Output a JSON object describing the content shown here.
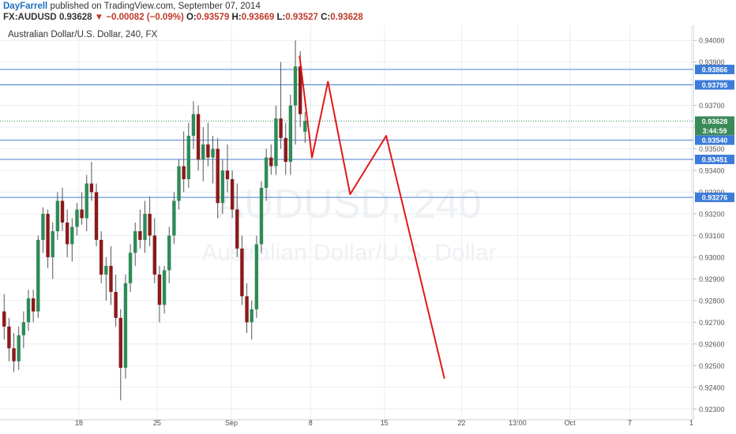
{
  "header": {
    "author": "DayFarrell",
    "published_text": " published on TradingView.com, September 07, 2014",
    "symbol": "FX:AUDUSD",
    "last": "0.93628",
    "change": "−0.00082 (−0.09%)",
    "o_label": "O:",
    "o": "0.93579",
    "h_label": "H:",
    "h": "0.93669",
    "l_label": "L:",
    "l": "0.93527",
    "c_label": "C:",
    "c": "0.93628"
  },
  "chart_title": "Australian Dollar/U.S. Dollar, 240, FX",
  "watermark": {
    "line1": "AUDUSD, 240",
    "line2": "Australian Dollar/U.S. Dollar"
  },
  "colors": {
    "up_candle": "#2e8b57",
    "down_candle": "#8b1a1a",
    "level_line": "#4a7fcf",
    "level_label_bg": "#3d7bd8",
    "last_price_bg": "#3a8a57",
    "projection": "#e21818",
    "grid": "#e8edf2"
  },
  "chart_data": {
    "type": "candlestick",
    "title": "Australian Dollar/U.S. Dollar, 240, FX",
    "y_range": [
      0.9225,
      0.9407
    ],
    "y_ticks": [
      0.923,
      0.924,
      0.925,
      0.926,
      0.927,
      0.928,
      0.929,
      0.93,
      0.931,
      0.932,
      0.933,
      0.934,
      0.935,
      0.936,
      0.937,
      0.938,
      0.939,
      0.94
    ],
    "y_tick_labels": [
      "0.92300",
      "0.92400",
      "0.92500",
      "0.92600",
      "0.92700",
      "0.92800",
      "0.92900",
      "0.93000",
      "0.93100",
      "0.93200",
      "0.93300",
      "0.93400",
      "0.93500",
      "0.93600",
      "0.93700",
      "0.93800",
      "0.93900",
      "0.94000"
    ],
    "x_range": [
      0,
      100
    ],
    "x_ticks": [
      {
        "label": "18",
        "x": 11.39
      },
      {
        "label": "25",
        "x": 22.65
      },
      {
        "label": "Sep",
        "x": 33.37
      },
      {
        "label": "8",
        "x": 44.79
      },
      {
        "label": "15",
        "x": 55.44
      },
      {
        "label": "22",
        "x": 66.56
      },
      {
        "label": "13:00",
        "x": 74.65
      },
      {
        "label": "Oct",
        "x": 82.19
      },
      {
        "label": "7",
        "x": 90.83
      },
      {
        "label": "1",
        "x": 99.72
      }
    ],
    "levels": [
      {
        "value": 0.93866,
        "label": "0.93866"
      },
      {
        "value": 0.93795,
        "label": "0.93795"
      },
      {
        "value": 0.9354,
        "label": "0.93540"
      },
      {
        "value": 0.93451,
        "label": "0.93451"
      },
      {
        "value": 0.93276,
        "label": "0.93276"
      }
    ],
    "last_price": {
      "value": 0.93628,
      "label": "0.93628",
      "countdown": "3:44:59"
    },
    "projection_path": [
      {
        "x": 43.2,
        "y": 0.9393
      },
      {
        "x": 45.0,
        "y": 0.9346
      },
      {
        "x": 47.3,
        "y": 0.9381
      },
      {
        "x": 50.5,
        "y": 0.9329
      },
      {
        "x": 55.7,
        "y": 0.9356
      },
      {
        "x": 64.1,
        "y": 0.9244
      }
    ],
    "candles": [
      {
        "x": 0.6,
        "o": 0.9275,
        "h": 0.9283,
        "l": 0.9262,
        "c": 0.9268
      },
      {
        "x": 1.3,
        "o": 0.9268,
        "h": 0.9272,
        "l": 0.9252,
        "c": 0.9258
      },
      {
        "x": 2.0,
        "o": 0.9258,
        "h": 0.9265,
        "l": 0.9247,
        "c": 0.9252
      },
      {
        "x": 2.7,
        "o": 0.9252,
        "h": 0.9268,
        "l": 0.9248,
        "c": 0.9264
      },
      {
        "x": 3.4,
        "o": 0.9264,
        "h": 0.9275,
        "l": 0.9258,
        "c": 0.927
      },
      {
        "x": 4.1,
        "o": 0.927,
        "h": 0.9285,
        "l": 0.9266,
        "c": 0.9281
      },
      {
        "x": 4.8,
        "o": 0.9281,
        "h": 0.9285,
        "l": 0.927,
        "c": 0.9275
      },
      {
        "x": 5.5,
        "o": 0.9275,
        "h": 0.931,
        "l": 0.9272,
        "c": 0.9308
      },
      {
        "x": 6.2,
        "o": 0.9308,
        "h": 0.9323,
        "l": 0.9302,
        "c": 0.932
      },
      {
        "x": 6.9,
        "o": 0.932,
        "h": 0.9322,
        "l": 0.9295,
        "c": 0.93
      },
      {
        "x": 7.6,
        "o": 0.93,
        "h": 0.9316,
        "l": 0.929,
        "c": 0.9312
      },
      {
        "x": 8.3,
        "o": 0.9312,
        "h": 0.933,
        "l": 0.9308,
        "c": 0.9326
      },
      {
        "x": 9.0,
        "o": 0.9326,
        "h": 0.9332,
        "l": 0.9312,
        "c": 0.9316
      },
      {
        "x": 9.7,
        "o": 0.9316,
        "h": 0.9322,
        "l": 0.93,
        "c": 0.9306
      },
      {
        "x": 10.4,
        "o": 0.9306,
        "h": 0.9318,
        "l": 0.9298,
        "c": 0.9314
      },
      {
        "x": 11.1,
        "o": 0.9314,
        "h": 0.9325,
        "l": 0.931,
        "c": 0.9322
      },
      {
        "x": 11.8,
        "o": 0.9322,
        "h": 0.933,
        "l": 0.9315,
        "c": 0.9318
      },
      {
        "x": 12.5,
        "o": 0.9318,
        "h": 0.9338,
        "l": 0.9312,
        "c": 0.9334
      },
      {
        "x": 13.2,
        "o": 0.9334,
        "h": 0.9344,
        "l": 0.9326,
        "c": 0.933
      },
      {
        "x": 13.9,
        "o": 0.933,
        "h": 0.9334,
        "l": 0.9305,
        "c": 0.9308
      },
      {
        "x": 14.6,
        "o": 0.9308,
        "h": 0.9312,
        "l": 0.9288,
        "c": 0.9292
      },
      {
        "x": 15.3,
        "o": 0.9292,
        "h": 0.93,
        "l": 0.928,
        "c": 0.9296
      },
      {
        "x": 16.0,
        "o": 0.9296,
        "h": 0.9305,
        "l": 0.9278,
        "c": 0.9284
      },
      {
        "x": 16.7,
        "o": 0.9284,
        "h": 0.9292,
        "l": 0.9268,
        "c": 0.9272
      },
      {
        "x": 17.4,
        "o": 0.9272,
        "h": 0.9276,
        "l": 0.9234,
        "c": 0.9249
      },
      {
        "x": 18.1,
        "o": 0.9249,
        "h": 0.9292,
        "l": 0.9244,
        "c": 0.9288
      },
      {
        "x": 18.8,
        "o": 0.9288,
        "h": 0.9306,
        "l": 0.9284,
        "c": 0.9302
      },
      {
        "x": 19.5,
        "o": 0.9302,
        "h": 0.9316,
        "l": 0.9296,
        "c": 0.9312
      },
      {
        "x": 20.2,
        "o": 0.9312,
        "h": 0.9322,
        "l": 0.9304,
        "c": 0.9308
      },
      {
        "x": 20.9,
        "o": 0.9308,
        "h": 0.9326,
        "l": 0.9302,
        "c": 0.932
      },
      {
        "x": 21.6,
        "o": 0.932,
        "h": 0.9328,
        "l": 0.9305,
        "c": 0.931
      },
      {
        "x": 22.3,
        "o": 0.931,
        "h": 0.9318,
        "l": 0.9288,
        "c": 0.9292
      },
      {
        "x": 23.0,
        "o": 0.9292,
        "h": 0.9296,
        "l": 0.927,
        "c": 0.9278
      },
      {
        "x": 23.7,
        "o": 0.9278,
        "h": 0.9296,
        "l": 0.9274,
        "c": 0.9294
      },
      {
        "x": 24.4,
        "o": 0.9294,
        "h": 0.9314,
        "l": 0.9288,
        "c": 0.931
      },
      {
        "x": 25.1,
        "o": 0.931,
        "h": 0.933,
        "l": 0.9306,
        "c": 0.9326
      },
      {
        "x": 25.8,
        "o": 0.9326,
        "h": 0.9345,
        "l": 0.9322,
        "c": 0.9342
      },
      {
        "x": 26.5,
        "o": 0.9342,
        "h": 0.9358,
        "l": 0.933,
        "c": 0.9336
      },
      {
        "x": 27.2,
        "o": 0.9336,
        "h": 0.9362,
        "l": 0.9332,
        "c": 0.9356
      },
      {
        "x": 27.9,
        "o": 0.9356,
        "h": 0.9372,
        "l": 0.935,
        "c": 0.9366
      },
      {
        "x": 28.6,
        "o": 0.9366,
        "h": 0.937,
        "l": 0.934,
        "c": 0.9345
      },
      {
        "x": 29.3,
        "o": 0.9345,
        "h": 0.936,
        "l": 0.9335,
        "c": 0.9352
      },
      {
        "x": 30.0,
        "o": 0.9352,
        "h": 0.9362,
        "l": 0.9342,
        "c": 0.9346
      },
      {
        "x": 30.7,
        "o": 0.9346,
        "h": 0.9356,
        "l": 0.9334,
        "c": 0.935
      },
      {
        "x": 31.4,
        "o": 0.935,
        "h": 0.9355,
        "l": 0.9318,
        "c": 0.9325
      },
      {
        "x": 32.1,
        "o": 0.9325,
        "h": 0.9345,
        "l": 0.932,
        "c": 0.934
      },
      {
        "x": 32.8,
        "o": 0.934,
        "h": 0.9352,
        "l": 0.933,
        "c": 0.9336
      },
      {
        "x": 33.5,
        "o": 0.9336,
        "h": 0.934,
        "l": 0.9318,
        "c": 0.9322
      },
      {
        "x": 34.2,
        "o": 0.9322,
        "h": 0.9334,
        "l": 0.93,
        "c": 0.9304
      },
      {
        "x": 34.9,
        "o": 0.9304,
        "h": 0.931,
        "l": 0.9278,
        "c": 0.9282
      },
      {
        "x": 35.6,
        "o": 0.9282,
        "h": 0.9288,
        "l": 0.9265,
        "c": 0.927
      },
      {
        "x": 36.3,
        "o": 0.927,
        "h": 0.928,
        "l": 0.9262,
        "c": 0.9276
      },
      {
        "x": 37.0,
        "o": 0.9276,
        "h": 0.931,
        "l": 0.9272,
        "c": 0.9306
      },
      {
        "x": 37.7,
        "o": 0.9306,
        "h": 0.9335,
        "l": 0.9302,
        "c": 0.9332
      },
      {
        "x": 38.4,
        "o": 0.9332,
        "h": 0.935,
        "l": 0.9326,
        "c": 0.9346
      },
      {
        "x": 39.1,
        "o": 0.9346,
        "h": 0.9352,
        "l": 0.9338,
        "c": 0.9342
      },
      {
        "x": 39.8,
        "o": 0.9342,
        "h": 0.937,
        "l": 0.9338,
        "c": 0.9364
      },
      {
        "x": 40.5,
        "o": 0.9364,
        "h": 0.939,
        "l": 0.935,
        "c": 0.9355
      },
      {
        "x": 41.2,
        "o": 0.9355,
        "h": 0.9362,
        "l": 0.9338,
        "c": 0.9344
      },
      {
        "x": 41.9,
        "o": 0.9344,
        "h": 0.9375,
        "l": 0.9338,
        "c": 0.937
      },
      {
        "x": 42.6,
        "o": 0.937,
        "h": 0.94,
        "l": 0.9352,
        "c": 0.9388
      },
      {
        "x": 43.3,
        "o": 0.9388,
        "h": 0.9395,
        "l": 0.936,
        "c": 0.9366
      },
      {
        "x": 44.0,
        "o": 0.93579,
        "h": 0.93669,
        "l": 0.93527,
        "c": 0.93628
      }
    ]
  }
}
